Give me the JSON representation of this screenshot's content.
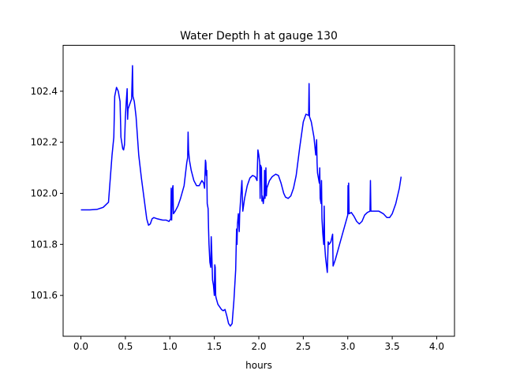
{
  "chart_data": {
    "type": "line",
    "title": "Water Depth h at gauge 130",
    "xlabel": "hours",
    "ylabel": "",
    "xlim": [
      -0.2,
      4.2
    ],
    "ylim": [
      101.44,
      102.58
    ],
    "grid": false,
    "x_ticks": [
      0.0,
      0.5,
      1.0,
      1.5,
      2.0,
      2.5,
      3.0,
      3.5,
      4.0
    ],
    "x_tick_labels": [
      "0.0",
      "0.5",
      "1.0",
      "1.5",
      "2.0",
      "2.5",
      "3.0",
      "3.5",
      "4.0"
    ],
    "y_ticks": [
      101.6,
      101.8,
      102.0,
      102.2,
      102.4
    ],
    "y_tick_labels": [
      "101.6",
      "101.8",
      "102.0",
      "102.2",
      "102.4"
    ],
    "series": [
      {
        "color": "#0000ff",
        "points": [
          [
            0.0,
            101.935
          ],
          [
            0.1,
            101.935
          ],
          [
            0.18,
            101.937
          ],
          [
            0.25,
            101.945
          ],
          [
            0.31,
            101.965
          ],
          [
            0.35,
            102.15
          ],
          [
            0.37,
            102.22
          ],
          [
            0.38,
            102.38
          ],
          [
            0.4,
            102.415
          ],
          [
            0.42,
            102.4
          ],
          [
            0.44,
            102.36
          ],
          [
            0.45,
            102.22
          ],
          [
            0.47,
            102.175
          ],
          [
            0.48,
            102.17
          ],
          [
            0.49,
            102.19
          ],
          [
            0.5,
            102.3
          ],
          [
            0.51,
            102.36
          ],
          [
            0.52,
            102.41
          ],
          [
            0.525,
            102.29
          ],
          [
            0.53,
            102.33
          ],
          [
            0.55,
            102.35
          ],
          [
            0.57,
            102.37
          ],
          [
            0.58,
            102.5
          ],
          [
            0.585,
            102.38
          ],
          [
            0.6,
            102.36
          ],
          [
            0.62,
            102.3
          ],
          [
            0.65,
            102.15
          ],
          [
            0.68,
            102.06
          ],
          [
            0.71,
            101.98
          ],
          [
            0.74,
            101.9
          ],
          [
            0.76,
            101.875
          ],
          [
            0.78,
            101.88
          ],
          [
            0.8,
            101.9
          ],
          [
            0.82,
            101.905
          ],
          [
            0.86,
            101.9
          ],
          [
            0.92,
            101.895
          ],
          [
            0.96,
            101.895
          ],
          [
            0.99,
            101.89
          ],
          [
            1.0,
            101.895
          ],
          [
            1.01,
            101.9
          ],
          [
            1.015,
            102.02
          ],
          [
            1.02,
            101.895
          ],
          [
            1.03,
            102.02
          ],
          [
            1.035,
            102.03
          ],
          [
            1.04,
            101.92
          ],
          [
            1.06,
            101.93
          ],
          [
            1.09,
            101.95
          ],
          [
            1.12,
            101.98
          ],
          [
            1.16,
            102.03
          ],
          [
            1.19,
            102.12
          ],
          [
            1.2,
            102.14
          ],
          [
            1.205,
            102.24
          ],
          [
            1.21,
            102.17
          ],
          [
            1.22,
            102.13
          ],
          [
            1.24,
            102.09
          ],
          [
            1.27,
            102.05
          ],
          [
            1.3,
            102.03
          ],
          [
            1.33,
            102.03
          ],
          [
            1.36,
            102.05
          ],
          [
            1.38,
            102.04
          ],
          [
            1.39,
            102.02
          ],
          [
            1.4,
            102.13
          ],
          [
            1.405,
            102.12
          ],
          [
            1.41,
            102.07
          ],
          [
            1.415,
            102.09
          ],
          [
            1.42,
            101.96
          ],
          [
            1.43,
            101.94
          ],
          [
            1.435,
            101.86
          ],
          [
            1.44,
            101.8
          ],
          [
            1.45,
            101.73
          ],
          [
            1.46,
            101.71
          ],
          [
            1.465,
            101.83
          ],
          [
            1.47,
            101.78
          ],
          [
            1.48,
            101.66
          ],
          [
            1.49,
            101.64
          ],
          [
            1.5,
            101.6
          ],
          [
            1.505,
            101.72
          ],
          [
            1.51,
            101.71
          ],
          [
            1.515,
            101.6
          ],
          [
            1.52,
            101.59
          ],
          [
            1.54,
            101.565
          ],
          [
            1.56,
            101.555
          ],
          [
            1.58,
            101.545
          ],
          [
            1.6,
            101.54
          ],
          [
            1.62,
            101.545
          ],
          [
            1.64,
            101.52
          ],
          [
            1.66,
            101.49
          ],
          [
            1.68,
            101.48
          ],
          [
            1.7,
            101.49
          ],
          [
            1.72,
            101.58
          ],
          [
            1.74,
            101.7
          ],
          [
            1.75,
            101.86
          ],
          [
            1.755,
            101.8
          ],
          [
            1.76,
            101.88
          ],
          [
            1.77,
            101.92
          ],
          [
            1.78,
            101.85
          ],
          [
            1.785,
            101.92
          ],
          [
            1.8,
            102.0
          ],
          [
            1.81,
            102.05
          ],
          [
            1.82,
            101.93
          ],
          [
            1.84,
            101.98
          ],
          [
            1.87,
            102.03
          ],
          [
            1.9,
            102.06
          ],
          [
            1.93,
            102.07
          ],
          [
            1.96,
            102.065
          ],
          [
            1.98,
            102.05
          ],
          [
            1.99,
            102.17
          ],
          [
            2.0,
            102.15
          ],
          [
            2.01,
            102.12
          ],
          [
            2.015,
            101.98
          ],
          [
            2.02,
            102.11
          ],
          [
            2.03,
            102.1
          ],
          [
            2.035,
            101.97
          ],
          [
            2.04,
            101.99
          ],
          [
            2.05,
            101.96
          ],
          [
            2.06,
            101.99
          ],
          [
            2.065,
            102.09
          ],
          [
            2.07,
            101.98
          ],
          [
            2.08,
            102.1
          ],
          [
            2.085,
            101.99
          ],
          [
            2.09,
            102.02
          ],
          [
            2.1,
            102.03
          ],
          [
            2.12,
            102.05
          ],
          [
            2.15,
            102.065
          ],
          [
            2.19,
            102.075
          ],
          [
            2.22,
            102.07
          ],
          [
            2.25,
            102.04
          ],
          [
            2.28,
            102.0
          ],
          [
            2.3,
            101.985
          ],
          [
            2.33,
            101.98
          ],
          [
            2.36,
            101.99
          ],
          [
            2.39,
            102.02
          ],
          [
            2.42,
            102.07
          ],
          [
            2.46,
            102.18
          ],
          [
            2.5,
            102.28
          ],
          [
            2.53,
            102.31
          ],
          [
            2.56,
            102.305
          ],
          [
            2.565,
            102.43
          ],
          [
            2.57,
            102.3
          ],
          [
            2.59,
            102.28
          ],
          [
            2.62,
            102.22
          ],
          [
            2.64,
            102.15
          ],
          [
            2.65,
            102.21
          ],
          [
            2.655,
            102.12
          ],
          [
            2.66,
            102.08
          ],
          [
            2.67,
            102.06
          ],
          [
            2.68,
            102.04
          ],
          [
            2.685,
            102.1
          ],
          [
            2.69,
            101.98
          ],
          [
            2.7,
            101.96
          ],
          [
            2.705,
            102.05
          ],
          [
            2.71,
            101.9
          ],
          [
            2.72,
            101.84
          ],
          [
            2.73,
            101.8
          ],
          [
            2.735,
            101.95
          ],
          [
            2.74,
            101.8
          ],
          [
            2.75,
            101.75
          ],
          [
            2.76,
            101.72
          ],
          [
            2.77,
            101.69
          ],
          [
            2.78,
            101.81
          ],
          [
            2.79,
            101.8
          ],
          [
            2.81,
            101.81
          ],
          [
            2.83,
            101.84
          ],
          [
            2.835,
            101.715
          ],
          [
            2.86,
            101.74
          ],
          [
            2.9,
            101.79
          ],
          [
            2.94,
            101.84
          ],
          [
            2.98,
            101.89
          ],
          [
            3.0,
            101.915
          ],
          [
            3.003,
            102.03
          ],
          [
            3.007,
            101.92
          ],
          [
            3.01,
            102.04
          ],
          [
            3.015,
            101.92
          ],
          [
            3.04,
            101.925
          ],
          [
            3.07,
            101.91
          ],
          [
            3.1,
            101.89
          ],
          [
            3.13,
            101.88
          ],
          [
            3.16,
            101.89
          ],
          [
            3.19,
            101.915
          ],
          [
            3.22,
            101.925
          ],
          [
            3.25,
            101.93
          ],
          [
            3.255,
            102.05
          ],
          [
            3.26,
            101.93
          ],
          [
            3.3,
            101.93
          ],
          [
            3.35,
            101.93
          ],
          [
            3.4,
            101.92
          ],
          [
            3.44,
            101.905
          ],
          [
            3.47,
            101.905
          ],
          [
            3.5,
            101.92
          ],
          [
            3.54,
            101.96
          ],
          [
            3.58,
            102.02
          ],
          [
            3.6,
            102.065
          ]
        ]
      }
    ]
  }
}
